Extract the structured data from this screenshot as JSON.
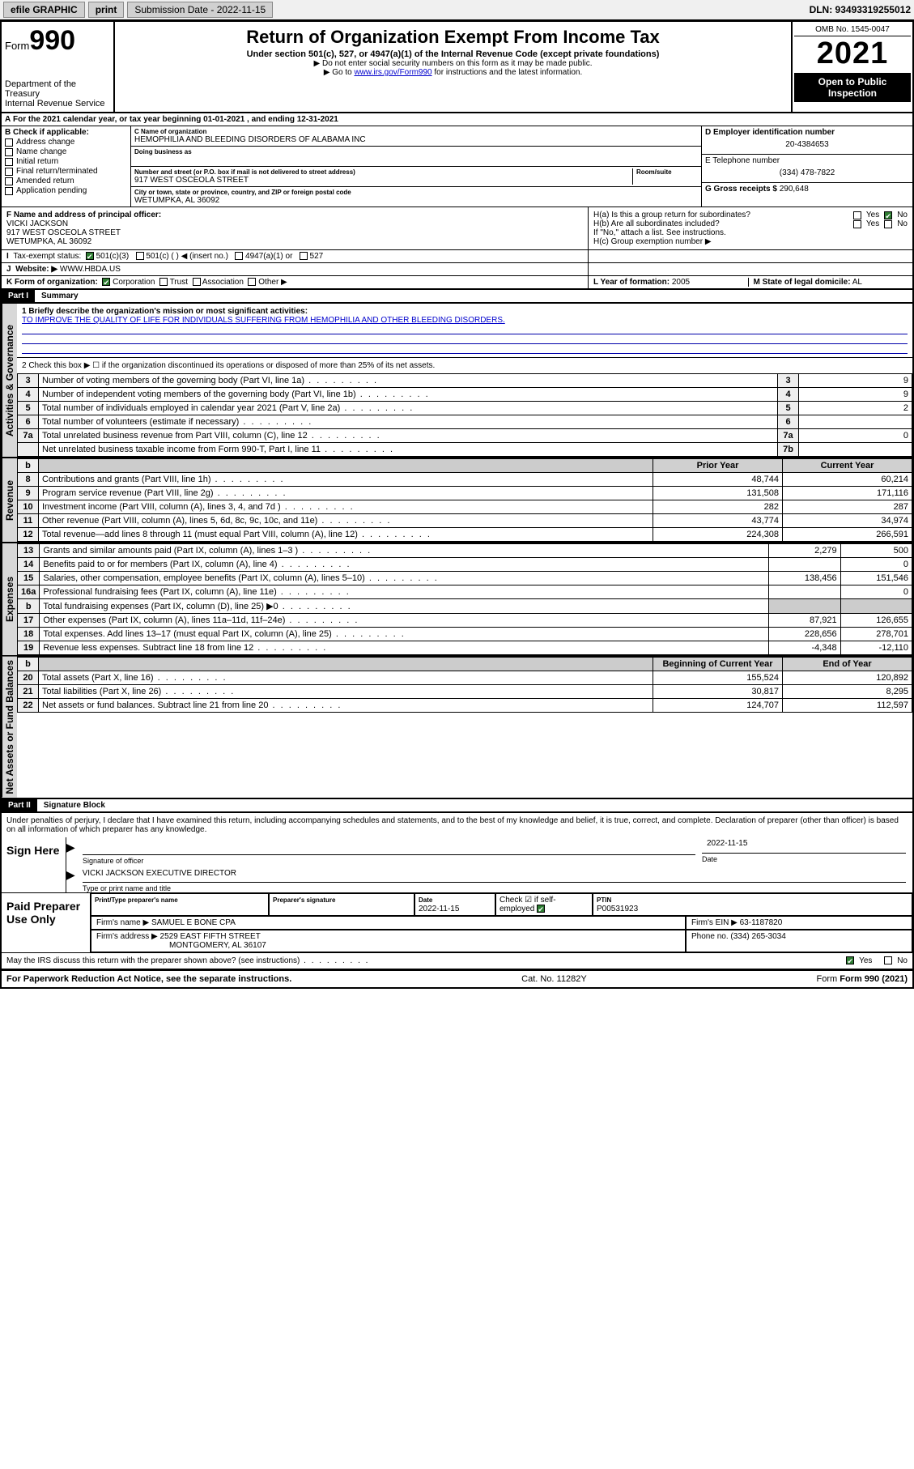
{
  "topbar": {
    "efile_label": "efile GRAPHIC",
    "print_label": "print",
    "submission_label": "Submission Date - 2022-11-15",
    "dln_label": "DLN: 93493319255012"
  },
  "header": {
    "form_word": "Form",
    "form_num": "990",
    "dept": "Department of the Treasury",
    "irs": "Internal Revenue Service",
    "title": "Return of Organization Exempt From Income Tax",
    "sub1": "Under section 501(c), 527, or 4947(a)(1) of the Internal Revenue Code (except private foundations)",
    "sub2": "Do not enter social security numbers on this form as it may be made public.",
    "sub3_pre": "Go to ",
    "sub3_link": "www.irs.gov/Form990",
    "sub3_post": " for instructions and the latest information.",
    "omb": "OMB No. 1545-0047",
    "year": "2021",
    "open": "Open to Public Inspection"
  },
  "line_a": {
    "text": "For the 2021 calendar year, or tax year beginning ",
    "begin": "01-01-2021",
    "mid": " , and ending ",
    "end": "12-31-2021"
  },
  "box_b": {
    "hdr": "B Check if applicable:",
    "opts": [
      "Address change",
      "Name change",
      "Initial return",
      "Final return/terminated",
      "Amended return",
      "Application pending"
    ]
  },
  "box_c": {
    "name_lbl": "C Name of organization",
    "name": "HEMOPHILIA AND BLEEDING DISORDERS OF ALABAMA INC",
    "dba_lbl": "Doing business as",
    "addr_lbl": "Number and street (or P.O. box if mail is not delivered to street address)",
    "room_lbl": "Room/suite",
    "addr": "917 WEST OSCEOLA STREET",
    "city_lbl": "City or town, state or province, country, and ZIP or foreign postal code",
    "city": "WETUMPKA, AL  36092"
  },
  "box_d": {
    "lbl": "D Employer identification number",
    "val": "20-4384653"
  },
  "box_e": {
    "lbl": "E Telephone number",
    "val": "(334) 478-7822"
  },
  "box_g": {
    "lbl": "G Gross receipts $",
    "val": "290,648"
  },
  "box_f": {
    "lbl": "F Name and address of principal officer:",
    "name": "VICKI JACKSON",
    "addr1": "917 WEST OSCEOLA STREET",
    "addr2": "WETUMPKA, AL  36092"
  },
  "box_h": {
    "a_lbl": "H(a)  Is this a group return for subordinates?",
    "a_yes": "Yes",
    "a_no_checked": true,
    "a_no": "No",
    "b_lbl": "H(b)  Are all subordinates included?",
    "b_yes": "Yes",
    "b_no": "No",
    "b_note": "If \"No,\" attach a list. See instructions.",
    "c_lbl": "H(c)  Group exemption number ▶"
  },
  "line_i": {
    "lbl": "Tax-exempt status:",
    "opts": [
      "501(c)(3)",
      "501(c) (  ) ◀ (insert no.)",
      "4947(a)(1) or",
      "527"
    ],
    "checked_idx": 0
  },
  "line_j": {
    "lbl": "Website: ▶",
    "val": "WWW.HBDA.US"
  },
  "line_k": {
    "lbl": "K Form of organization:",
    "opts": [
      "Corporation",
      "Trust",
      "Association",
      "Other ▶"
    ],
    "checked_idx": 0
  },
  "line_l": {
    "lbl": "L Year of formation:",
    "val": "2005"
  },
  "line_m": {
    "lbl": "M State of legal domicile:",
    "val": "AL"
  },
  "part1": {
    "hdr": "Part I",
    "title": "Summary",
    "l1_lbl": "1  Briefly describe the organization's mission or most significant activities:",
    "l1_val": "TO IMPROVE THE QUALITY OF LIFE FOR INDIVIDUALS SUFFERING FROM HEMOPHILIA AND OTHER BLEEDING DISORDERS.",
    "l2": "2  Check this box ▶ ☐  if the organization discontinued its operations or disposed of more than 25% of its net assets.",
    "side_gov": "Activities & Governance",
    "side_rev": "Revenue",
    "side_exp": "Expenses",
    "side_net": "Net Assets or Fund Balances",
    "gov_rows": [
      {
        "n": "3",
        "d": "Number of voting members of the governing body (Part VI, line 1a)",
        "box": "3",
        "v": "9"
      },
      {
        "n": "4",
        "d": "Number of independent voting members of the governing body (Part VI, line 1b)",
        "box": "4",
        "v": "9"
      },
      {
        "n": "5",
        "d": "Total number of individuals employed in calendar year 2021 (Part V, line 2a)",
        "box": "5",
        "v": "2"
      },
      {
        "n": "6",
        "d": "Total number of volunteers (estimate if necessary)",
        "box": "6",
        "v": ""
      },
      {
        "n": "7a",
        "d": "Total unrelated business revenue from Part VIII, column (C), line 12",
        "box": "7a",
        "v": "0"
      },
      {
        "n": "",
        "d": "Net unrelated business taxable income from Form 990-T, Part I, line 11",
        "box": "7b",
        "v": ""
      }
    ],
    "col_prior": "Prior Year",
    "col_curr": "Current Year",
    "rev_rows": [
      {
        "n": "8",
        "d": "Contributions and grants (Part VIII, line 1h)",
        "py": "48,744",
        "cy": "60,214"
      },
      {
        "n": "9",
        "d": "Program service revenue (Part VIII, line 2g)",
        "py": "131,508",
        "cy": "171,116"
      },
      {
        "n": "10",
        "d": "Investment income (Part VIII, column (A), lines 3, 4, and 7d )",
        "py": "282",
        "cy": "287"
      },
      {
        "n": "11",
        "d": "Other revenue (Part VIII, column (A), lines 5, 6d, 8c, 9c, 10c, and 11e)",
        "py": "43,774",
        "cy": "34,974"
      },
      {
        "n": "12",
        "d": "Total revenue—add lines 8 through 11 (must equal Part VIII, column (A), line 12)",
        "py": "224,308",
        "cy": "266,591"
      }
    ],
    "exp_rows": [
      {
        "n": "13",
        "d": "Grants and similar amounts paid (Part IX, column (A), lines 1–3 )",
        "py": "2,279",
        "cy": "500"
      },
      {
        "n": "14",
        "d": "Benefits paid to or for members (Part IX, column (A), line 4)",
        "py": "",
        "cy": "0"
      },
      {
        "n": "15",
        "d": "Salaries, other compensation, employee benefits (Part IX, column (A), lines 5–10)",
        "py": "138,456",
        "cy": "151,546"
      },
      {
        "n": "16a",
        "d": "Professional fundraising fees (Part IX, column (A), line 11e)",
        "py": "",
        "cy": "0"
      },
      {
        "n": "b",
        "d": "Total fundraising expenses (Part IX, column (D), line 25) ▶0",
        "py": "SHADE",
        "cy": "SHADE"
      },
      {
        "n": "17",
        "d": "Other expenses (Part IX, column (A), lines 11a–11d, 11f–24e)",
        "py": "87,921",
        "cy": "126,655"
      },
      {
        "n": "18",
        "d": "Total expenses. Add lines 13–17 (must equal Part IX, column (A), line 25)",
        "py": "228,656",
        "cy": "278,701"
      },
      {
        "n": "19",
        "d": "Revenue less expenses. Subtract line 18 from line 12",
        "py": "-4,348",
        "cy": "-12,110"
      }
    ],
    "col_boy": "Beginning of Current Year",
    "col_eoy": "End of Year",
    "net_rows": [
      {
        "n": "20",
        "d": "Total assets (Part X, line 16)",
        "py": "155,524",
        "cy": "120,892"
      },
      {
        "n": "21",
        "d": "Total liabilities (Part X, line 26)",
        "py": "30,817",
        "cy": "8,295"
      },
      {
        "n": "22",
        "d": "Net assets or fund balances. Subtract line 21 from line 20",
        "py": "124,707",
        "cy": "112,597"
      }
    ]
  },
  "part2": {
    "hdr": "Part II",
    "title": "Signature Block",
    "jurat": "Under penalties of perjury, I declare that I have examined this return, including accompanying schedules and statements, and to the best of my knowledge and belief, it is true, correct, and complete. Declaration of preparer (other than officer) is based on all information of which preparer has any knowledge.",
    "sign_here": "Sign Here",
    "sig_officer_lbl": "Signature of officer",
    "date_lbl": "Date",
    "sig_date": "2022-11-15",
    "name_title": "VICKI JACKSON  EXECUTIVE DIRECTOR",
    "name_title_lbl": "Type or print name and title",
    "paid_hdr": "Paid Preparer Use Only",
    "prep_name_lbl": "Print/Type preparer's name",
    "prep_sig_lbl": "Preparer's signature",
    "prep_date_lbl": "Date",
    "prep_date": "2022-11-15",
    "prep_check_lbl": "Check ☑ if self-employed",
    "prep_ptin_lbl": "PTIN",
    "prep_ptin": "P00531923",
    "firm_name_lbl": "Firm's name  ▶",
    "firm_name": "SAMUEL E BONE CPA",
    "firm_ein_lbl": "Firm's EIN ▶",
    "firm_ein": "63-1187820",
    "firm_addr_lbl": "Firm's address ▶",
    "firm_addr1": "2529 EAST FIFTH STREET",
    "firm_addr2": "MONTGOMERY, AL  36107",
    "firm_phone_lbl": "Phone no.",
    "firm_phone": "(334) 265-3034",
    "discuss": "May the IRS discuss this return with the preparer shown above? (see instructions)",
    "discuss_yes": "Yes",
    "discuss_no": "No",
    "discuss_yes_checked": true
  },
  "footer": {
    "pra": "For Paperwork Reduction Act Notice, see the separate instructions.",
    "cat": "Cat. No. 11282Y",
    "form": "Form 990 (2021)"
  }
}
